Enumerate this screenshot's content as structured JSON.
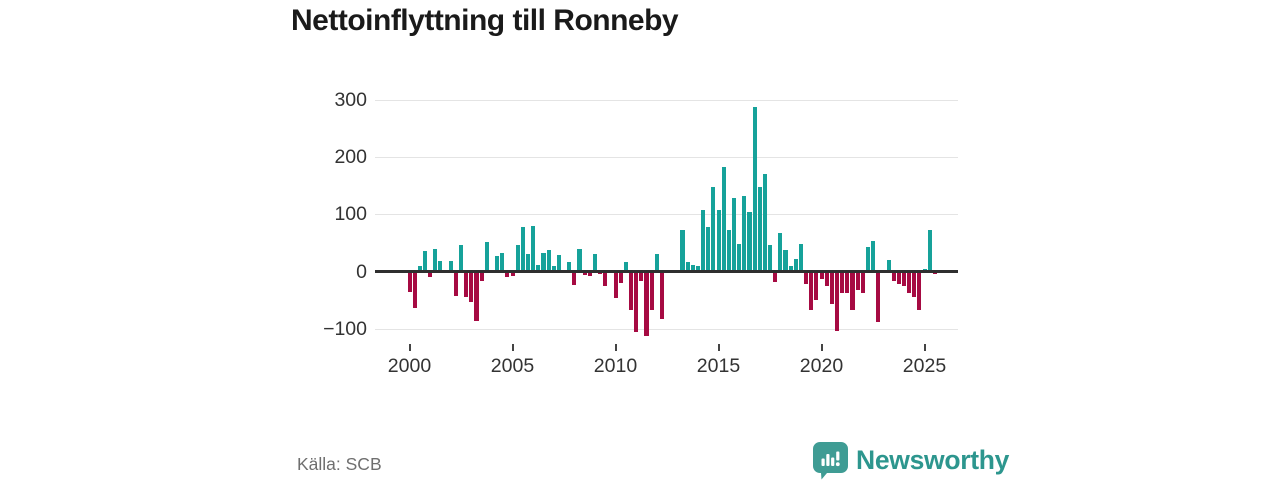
{
  "title": "Nettoinflyttning till Ronneby",
  "footer": {
    "source": "Källa: SCB",
    "brand_name": "Newsworthy"
  },
  "icons": {
    "brand_icon": "newsworthy-speech-bubble-bar-chart-icon"
  },
  "colors": {
    "positive_bar": "#16a29a",
    "negative_bar": "#a60a42",
    "zero_line": "#2f2f2f",
    "gridline": "#e4e4e4",
    "axis_text": "#333333",
    "title_text": "#1a1a1a",
    "source_text": "#6f6f6f",
    "brand_text": "#2d968e",
    "brand_icon": "#3f9c94",
    "background": "#ffffff"
  },
  "chart_data": {
    "type": "bar",
    "title": "Nettoinflyttning till Ronneby",
    "xlabel": "",
    "ylabel": "",
    "frequency": "quarterly",
    "start": "2000-Q1",
    "end": "2025-Q3",
    "grid": true,
    "legend": "none",
    "ylim": [
      -125,
      320
    ],
    "y_ticks": [
      300,
      200,
      100,
      0,
      -100
    ],
    "y_tick_labels": [
      "300",
      "200",
      "100",
      "0",
      "−100"
    ],
    "x_tick_labels": [
      "2000",
      "2005",
      "2010",
      "2015",
      "2020",
      "2025"
    ],
    "quarters": [
      "2000Q1",
      "2000Q2",
      "2000Q3",
      "2000Q4",
      "2001Q1",
      "2001Q2",
      "2001Q3",
      "2001Q4",
      "2002Q1",
      "2002Q2",
      "2002Q3",
      "2002Q4",
      "2003Q1",
      "2003Q2",
      "2003Q3",
      "2003Q4",
      "2004Q1",
      "2004Q2",
      "2004Q3",
      "2004Q4",
      "2005Q1",
      "2005Q2",
      "2005Q3",
      "2005Q4",
      "2006Q1",
      "2006Q2",
      "2006Q3",
      "2006Q4",
      "2007Q1",
      "2007Q2",
      "2007Q3",
      "2007Q4",
      "2008Q1",
      "2008Q2",
      "2008Q3",
      "2008Q4",
      "2009Q1",
      "2009Q2",
      "2009Q3",
      "2009Q4",
      "2010Q1",
      "2010Q2",
      "2010Q3",
      "2010Q4",
      "2011Q1",
      "2011Q2",
      "2011Q3",
      "2011Q4",
      "2012Q1",
      "2012Q2",
      "2012Q3",
      "2012Q4",
      "2013Q1",
      "2013Q2",
      "2013Q3",
      "2013Q4",
      "2014Q1",
      "2014Q2",
      "2014Q3",
      "2014Q4",
      "2015Q1",
      "2015Q2",
      "2015Q3",
      "2015Q4",
      "2016Q1",
      "2016Q2",
      "2016Q3",
      "2016Q4",
      "2017Q1",
      "2017Q2",
      "2017Q3",
      "2017Q4",
      "2018Q1",
      "2018Q2",
      "2018Q3",
      "2018Q4",
      "2019Q1",
      "2019Q2",
      "2019Q3",
      "2019Q4",
      "2020Q1",
      "2020Q2",
      "2020Q3",
      "2020Q4",
      "2021Q1",
      "2021Q2",
      "2021Q3",
      "2021Q4",
      "2022Q1",
      "2022Q2",
      "2022Q3",
      "2022Q4",
      "2023Q1",
      "2023Q2",
      "2023Q3",
      "2023Q4",
      "2024Q1",
      "2024Q2",
      "2024Q3",
      "2024Q4",
      "2025Q1",
      "2025Q2",
      "2025Q3"
    ],
    "values": [
      -35,
      -64,
      10,
      35,
      -9,
      40,
      19,
      2,
      18,
      -42,
      47,
      -44,
      -54,
      -86,
      -16,
      52,
      1,
      27,
      33,
      -9,
      -8,
      47,
      77,
      30,
      80,
      12,
      32,
      38,
      9,
      29,
      2,
      17,
      -23,
      39,
      -6,
      -8,
      31,
      -5,
      -26,
      1,
      -47,
      -20,
      16,
      -67,
      -106,
      -17,
      -113,
      -67,
      31,
      -83,
      -1,
      -2,
      1,
      72,
      16,
      12,
      10,
      108,
      77,
      148,
      108,
      183,
      73,
      128,
      48,
      132,
      103,
      287,
      148,
      170,
      46,
      -19,
      67,
      38,
      10,
      21,
      48,
      -22,
      -67,
      -50,
      -13,
      -25,
      -56,
      -104,
      -37,
      -37,
      -67,
      -32,
      -37,
      43,
      54,
      -88,
      2,
      20,
      -16,
      -22,
      -25,
      -38,
      -45,
      -67,
      5,
      73,
      -4
    ]
  }
}
